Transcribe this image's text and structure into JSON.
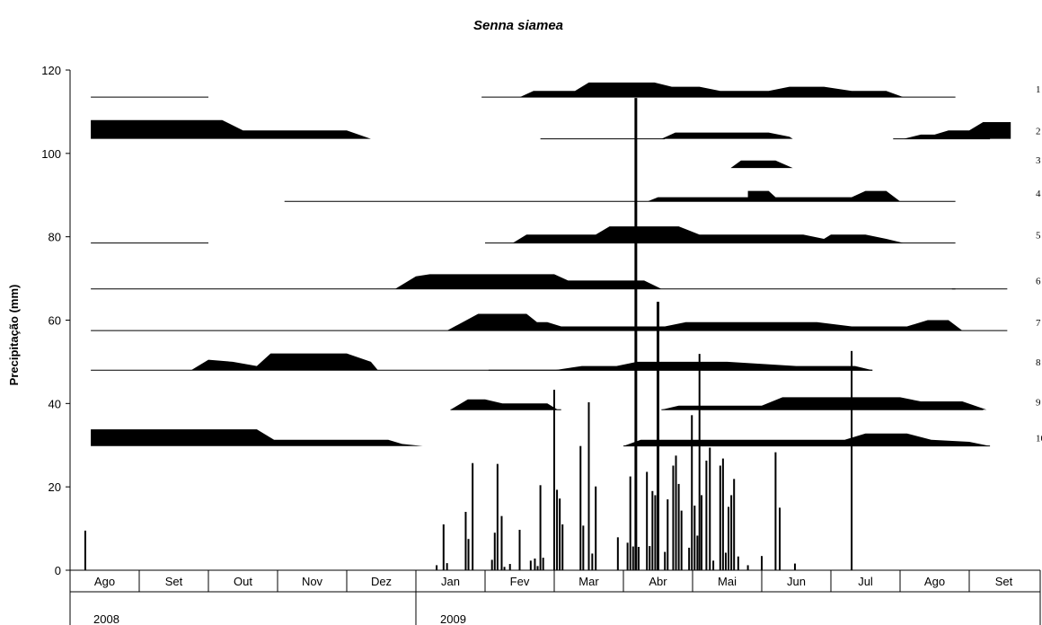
{
  "chart_data": {
    "type": "bar",
    "title": "Senna siamea",
    "ylabel": "Precipitação (mm)",
    "ylim": [
      0,
      120
    ],
    "yticks": [
      0,
      20,
      40,
      60,
      80,
      100,
      120
    ],
    "months": [
      "Ago",
      "Set",
      "Out",
      "Nov",
      "Dez",
      "Jan",
      "Fev",
      "Mar",
      "Abr",
      "Mai",
      "Jun",
      "Jul",
      "Ago",
      "Set"
    ],
    "years": [
      "2008",
      "2009"
    ],
    "row_labels": [
      "1",
      "2",
      "3",
      "4",
      "5",
      "6",
      "7",
      "8",
      "9",
      "10"
    ],
    "precipitation": [
      {
        "m": 0.22,
        "v": 9.5
      },
      {
        "m": 5.3,
        "v": 1.2
      },
      {
        "m": 5.4,
        "v": 11
      },
      {
        "m": 5.45,
        "v": 1.7
      },
      {
        "m": 5.72,
        "v": 14
      },
      {
        "m": 5.76,
        "v": 7.5
      },
      {
        "m": 5.82,
        "v": 25.7
      },
      {
        "m": 6.1,
        "v": 2.5
      },
      {
        "m": 6.14,
        "v": 9
      },
      {
        "m": 6.18,
        "v": 25.5
      },
      {
        "m": 6.24,
        "v": 13
      },
      {
        "m": 6.28,
        "v": 0.8
      },
      {
        "m": 6.36,
        "v": 1.5
      },
      {
        "m": 6.5,
        "v": 9.7
      },
      {
        "m": 6.66,
        "v": 2.3
      },
      {
        "m": 6.72,
        "v": 2.8
      },
      {
        "m": 6.76,
        "v": 1
      },
      {
        "m": 6.8,
        "v": 20.4
      },
      {
        "m": 6.84,
        "v": 3
      },
      {
        "m": 7.0,
        "v": 43.3
      },
      {
        "m": 7.04,
        "v": 19.3
      },
      {
        "m": 7.08,
        "v": 17.2
      },
      {
        "m": 7.12,
        "v": 11
      },
      {
        "m": 7.38,
        "v": 29.8
      },
      {
        "m": 7.42,
        "v": 10.7
      },
      {
        "m": 7.5,
        "v": 40.3
      },
      {
        "m": 7.55,
        "v": 4
      },
      {
        "m": 7.6,
        "v": 20.1
      },
      {
        "m": 7.92,
        "v": 7.9
      },
      {
        "m": 8.06,
        "v": 6.6
      },
      {
        "m": 8.1,
        "v": 22.5
      },
      {
        "m": 8.14,
        "v": 5.7
      },
      {
        "m": 8.18,
        "v": 113.3
      },
      {
        "m": 8.22,
        "v": 5.6
      },
      {
        "m": 8.34,
        "v": 23.6
      },
      {
        "m": 8.38,
        "v": 5.8
      },
      {
        "m": 8.42,
        "v": 19
      },
      {
        "m": 8.46,
        "v": 18
      },
      {
        "m": 8.5,
        "v": 64.4
      },
      {
        "m": 8.6,
        "v": 4.4
      },
      {
        "m": 8.64,
        "v": 17
      },
      {
        "m": 8.72,
        "v": 25.1
      },
      {
        "m": 8.76,
        "v": 27.5
      },
      {
        "m": 8.8,
        "v": 20.7
      },
      {
        "m": 8.84,
        "v": 14.3
      },
      {
        "m": 8.95,
        "v": 5.4
      },
      {
        "m": 8.99,
        "v": 37.2
      },
      {
        "m": 9.03,
        "v": 15.5
      },
      {
        "m": 9.07,
        "v": 8.3
      },
      {
        "m": 9.1,
        "v": 51.9
      },
      {
        "m": 9.13,
        "v": 18
      },
      {
        "m": 9.2,
        "v": 26.3
      },
      {
        "m": 9.25,
        "v": 29.4
      },
      {
        "m": 9.3,
        "v": 2.3
      },
      {
        "m": 9.4,
        "v": 25.1
      },
      {
        "m": 9.44,
        "v": 26.8
      },
      {
        "m": 9.48,
        "v": 4.2
      },
      {
        "m": 9.52,
        "v": 15.2
      },
      {
        "m": 9.56,
        "v": 18
      },
      {
        "m": 9.6,
        "v": 21.9
      },
      {
        "m": 9.66,
        "v": 3.3
      },
      {
        "m": 9.8,
        "v": 1.2
      },
      {
        "m": 10.0,
        "v": 3.4
      },
      {
        "m": 10.2,
        "v": 28.3
      },
      {
        "m": 10.26,
        "v": 15
      },
      {
        "m": 10.48,
        "v": 1.6
      },
      {
        "m": 11.3,
        "v": 52.6
      }
    ],
    "phenology": [
      {
        "label": "1",
        "base": 113.5,
        "lines": [
          [
            0.3,
            2.0
          ],
          [
            5.95,
            12.8
          ]
        ],
        "shape": [
          [
            6.5,
            0
          ],
          [
            6.7,
            1.5
          ],
          [
            7.0,
            1.5
          ],
          [
            7.3,
            1.5
          ],
          [
            7.5,
            3.5
          ],
          [
            7.9,
            3.5
          ],
          [
            8.45,
            3.5
          ],
          [
            8.7,
            2.5
          ],
          [
            9.1,
            2.5
          ],
          [
            9.4,
            1.5
          ],
          [
            9.9,
            1.5
          ],
          [
            10.1,
            1.5
          ],
          [
            10.4,
            2.5
          ],
          [
            10.9,
            2.5
          ],
          [
            11.3,
            1.5
          ],
          [
            11.8,
            1.5
          ],
          [
            12.05,
            0
          ]
        ]
      },
      {
        "label": "2",
        "base": 103.5,
        "lines": [
          [
            6.8,
            8.6
          ],
          [
            11.9,
            13.3
          ]
        ],
        "shapes": [
          [
            [
              0.3,
              0
            ],
            [
              0.3,
              4.5
            ],
            [
              2.2,
              4.5
            ],
            [
              2.5,
              2
            ],
            [
              4.0,
              2
            ],
            [
              4.35,
              0
            ]
          ],
          [
            [
              8.55,
              0
            ],
            [
              8.75,
              1.5
            ],
            [
              9.5,
              1.5
            ],
            [
              10.1,
              1.5
            ],
            [
              10.4,
              0.5
            ],
            [
              10.45,
              0
            ]
          ],
          [
            [
              12.05,
              0
            ],
            [
              12.3,
              1
            ],
            [
              12.5,
              1
            ],
            [
              12.7,
              2
            ],
            [
              13.0,
              2
            ],
            [
              13.2,
              4
            ],
            [
              13.6,
              4
            ],
            [
              13.6,
              0
            ]
          ]
        ]
      },
      {
        "label": "3",
        "base": 96.5,
        "lines": [],
        "shape": [
          [
            9.55,
            0
          ],
          [
            9.7,
            1.8
          ],
          [
            10.2,
            1.8
          ],
          [
            10.45,
            0
          ]
        ]
      },
      {
        "label": "4",
        "base": 88.5,
        "lines": [
          [
            3.1,
            8.35
          ],
          [
            8.35,
            12.8
          ]
        ],
        "shape": [
          [
            8.35,
            0
          ],
          [
            8.5,
            1
          ],
          [
            9.3,
            1
          ],
          [
            9.8,
            1
          ],
          [
            9.8,
            2.5
          ],
          [
            10.1,
            2.5
          ],
          [
            10.2,
            1
          ],
          [
            11.3,
            1
          ],
          [
            11.5,
            2.5
          ],
          [
            11.8,
            2.5
          ],
          [
            12.0,
            0
          ]
        ]
      },
      {
        "label": "5",
        "base": 78.5,
        "lines": [
          [
            0.3,
            2.0
          ],
          [
            6.0,
            12.8
          ]
        ],
        "shape": [
          [
            6.4,
            0
          ],
          [
            6.6,
            2
          ],
          [
            7.0,
            2
          ],
          [
            7.6,
            2
          ],
          [
            7.8,
            4
          ],
          [
            8.3,
            4
          ],
          [
            8.8,
            4
          ],
          [
            9.1,
            2
          ],
          [
            10.6,
            2
          ],
          [
            10.9,
            1
          ],
          [
            11.0,
            2
          ],
          [
            11.5,
            2
          ],
          [
            11.8,
            1
          ],
          [
            12.05,
            0
          ]
        ]
      },
      {
        "label": "6",
        "base": 67.5,
        "lines": [
          [
            0.3,
            12.8
          ],
          [
            12.75,
            13.55
          ]
        ],
        "shape": [
          [
            4.7,
            0
          ],
          [
            5.0,
            3
          ],
          [
            5.2,
            3.5
          ],
          [
            6.1,
            3.5
          ],
          [
            7.0,
            3.5
          ],
          [
            7.2,
            2
          ],
          [
            7.9,
            2
          ],
          [
            8.3,
            2
          ],
          [
            8.55,
            0
          ]
        ]
      },
      {
        "label": "7",
        "base": 57.5,
        "lines": [
          [
            0.3,
            13.55
          ]
        ],
        "shape": [
          [
            5.45,
            0
          ],
          [
            5.9,
            4
          ],
          [
            6.6,
            4
          ],
          [
            6.75,
            2
          ],
          [
            6.9,
            2
          ],
          [
            7.1,
            1
          ],
          [
            8.3,
            1
          ],
          [
            8.6,
            1
          ],
          [
            8.9,
            2
          ],
          [
            9.6,
            2
          ],
          [
            10.8,
            2
          ],
          [
            11.3,
            1
          ],
          [
            12.1,
            1
          ],
          [
            12.4,
            2.5
          ],
          [
            12.7,
            2.5
          ],
          [
            12.9,
            0
          ]
        ]
      },
      {
        "label": "8",
        "base": 48.0,
        "lines": [
          [
            0.3,
            11.6
          ],
          [
            6.05,
            11.6
          ]
        ],
        "shapes": [
          [
            [
              1.75,
              0
            ],
            [
              2.0,
              2.5
            ],
            [
              2.35,
              2
            ],
            [
              2.7,
              1
            ],
            [
              2.9,
              4
            ],
            [
              4.0,
              4
            ],
            [
              4.35,
              2
            ],
            [
              4.45,
              0
            ]
          ],
          [
            [
              7.0,
              0
            ],
            [
              7.4,
              1
            ],
            [
              7.9,
              1
            ],
            [
              8.2,
              2
            ],
            [
              9.5,
              2
            ],
            [
              10.5,
              1
            ],
            [
              11.0,
              1
            ],
            [
              11.35,
              1
            ],
            [
              11.6,
              0
            ]
          ]
        ]
      },
      {
        "label": "9",
        "base": 38.5,
        "lines": [
          [
            5.5,
            7.1
          ],
          [
            8.55,
            13.2
          ]
        ],
        "shapes": [
          [
            [
              5.5,
              0
            ],
            [
              5.75,
              2.5
            ],
            [
              6.0,
              2.5
            ],
            [
              6.25,
              1.5
            ],
            [
              6.9,
              1.5
            ],
            [
              7.05,
              0
            ]
          ],
          [
            [
              8.55,
              0
            ],
            [
              8.8,
              1
            ],
            [
              9.3,
              1
            ],
            [
              10.0,
              1
            ],
            [
              10.3,
              3
            ],
            [
              10.9,
              3
            ],
            [
              12.0,
              3
            ],
            [
              12.3,
              2
            ],
            [
              12.9,
              2
            ],
            [
              13.25,
              0
            ]
          ]
        ]
      },
      {
        "label": "10",
        "base": 29.8,
        "lines": [
          [
            8.0,
            13.3
          ]
        ],
        "shapes": [
          [
            [
              0.3,
              0
            ],
            [
              0.3,
              4
            ],
            [
              1.1,
              4
            ],
            [
              1.8,
              4
            ],
            [
              2.7,
              4
            ],
            [
              2.95,
              1.5
            ],
            [
              4.6,
              1.5
            ],
            [
              4.8,
              0.5
            ],
            [
              5.1,
              0
            ]
          ],
          [
            [
              8.0,
              0
            ],
            [
              8.25,
              1.5
            ],
            [
              9.3,
              1.5
            ],
            [
              10.7,
              1.5
            ],
            [
              11.2,
              1.5
            ],
            [
              11.5,
              3
            ],
            [
              12.1,
              3
            ],
            [
              12.45,
              1.5
            ],
            [
              13.0,
              1
            ],
            [
              13.3,
              0
            ]
          ]
        ]
      }
    ]
  }
}
